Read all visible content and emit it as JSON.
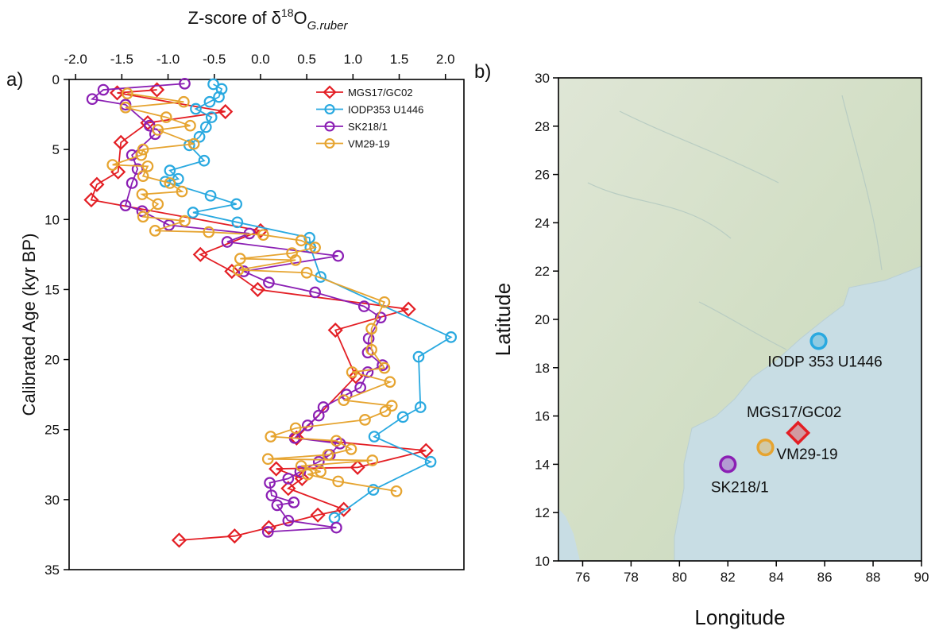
{
  "chart_data": [
    {
      "type": "line",
      "orientation": "vertical",
      "panel_label": "a)",
      "xlabel": [
        "Z-score of δ",
        "18",
        "O",
        "G.ruber"
      ],
      "ylabel": "Calibrated Age (kyr BP)",
      "xlim": [
        -2.07,
        2.2
      ],
      "xticks": [
        {
          "value": -2,
          "label": "-2.0"
        },
        -1.5,
        {
          "value": -1,
          "label": "-1.0"
        },
        -0.5,
        {
          "value": 0,
          "label": "0.0"
        },
        0.5,
        {
          "value": 1,
          "label": "1.0"
        },
        1.5,
        {
          "value": 2,
          "label": "2.0"
        }
      ],
      "ylim": [
        0,
        35
      ],
      "y_inverted": true,
      "yticks": [
        0,
        5,
        10,
        15,
        20,
        25,
        30,
        35
      ],
      "legend": "upper right",
      "series": [
        {
          "name": "MGS17/GC02",
          "color": "#e31e24",
          "marker": "diamond",
          "ages": [
            0.74,
            0.96,
            2.3,
            3.1,
            4.5,
            6.6,
            7.5,
            8.6,
            10.8,
            12.5,
            13.7,
            15.0,
            16.4,
            17.9,
            21.2,
            25.6,
            26.5,
            27.7,
            27.8,
            28.5,
            29.2,
            30.7,
            31.1,
            32.0,
            32.6,
            32.9
          ],
          "values": [
            -1.12,
            -1.55,
            -0.38,
            -1.22,
            -1.51,
            -1.54,
            -1.77,
            -1.83,
            0.0,
            -0.65,
            -0.31,
            -0.03,
            1.6,
            0.81,
            1.03,
            0.39,
            1.79,
            1.05,
            0.17,
            0.45,
            0.3,
            0.9,
            0.62,
            0.09,
            -0.28,
            -0.88
          ]
        },
        {
          "name": "IODP353 U1446",
          "color": "#29a9e0",
          "marker": "circle",
          "ages": [
            0.34,
            0.68,
            1.25,
            1.6,
            2.1,
            2.7,
            3.4,
            4.1,
            4.7,
            5.8,
            6.5,
            7.1,
            7.3,
            8.3,
            8.9,
            9.5,
            10.2,
            11.3,
            12.0,
            14.1,
            18.4,
            19.8,
            23.4,
            24.1,
            25.5,
            27.3,
            29.3,
            31.3
          ],
          "values": [
            -0.51,
            -0.42,
            -0.45,
            -0.55,
            -0.7,
            -0.53,
            -0.59,
            -0.66,
            -0.77,
            -0.61,
            -0.98,
            -0.89,
            -1.03,
            -0.54,
            -0.26,
            -0.73,
            -0.25,
            0.53,
            0.54,
            0.65,
            2.06,
            1.71,
            1.73,
            1.54,
            1.23,
            1.84,
            1.22,
            0.8
          ]
        },
        {
          "name": "SK218/1",
          "color": "#8b1fb4",
          "marker": "circle",
          "ages": [
            0.3,
            0.74,
            1.4,
            1.8,
            3.3,
            3.9,
            5.4,
            6.4,
            7.4,
            9.0,
            9.4,
            10.4,
            11.0,
            11.6,
            12.6,
            13.7,
            14.5,
            15.2,
            16.2,
            17.0,
            18.5,
            19.5,
            20.4,
            20.9,
            22.0,
            22.5,
            23.4,
            24.0,
            24.7,
            25.6,
            26.0,
            26.8,
            27.3,
            28.0,
            28.5,
            28.8,
            29.7,
            30.2,
            30.4,
            31.5,
            32.0,
            32.3
          ],
          "values": [
            -0.82,
            -1.7,
            -1.82,
            -1.46,
            -1.2,
            -1.14,
            -1.39,
            -1.33,
            -1.39,
            -1.46,
            -1.28,
            -0.99,
            -0.12,
            -0.36,
            0.84,
            -0.18,
            0.09,
            0.59,
            1.12,
            1.3,
            1.17,
            1.16,
            1.32,
            1.16,
            1.08,
            0.93,
            0.68,
            0.63,
            0.51,
            0.37,
            0.86,
            0.75,
            0.63,
            0.43,
            0.3,
            0.1,
            0.12,
            0.36,
            0.18,
            0.3,
            0.82,
            0.08
          ]
        },
        {
          "name": "VM29-19",
          "color": "#e6a430",
          "marker": "circle",
          "ages": [
            1.0,
            1.6,
            2.0,
            2.7,
            3.3,
            3.6,
            4.6,
            5.0,
            5.4,
            6.1,
            6.2,
            6.9,
            7.4,
            8.0,
            8.2,
            8.9,
            9.8,
            10.1,
            10.8,
            10.9,
            11.1,
            11.5,
            12.0,
            12.4,
            12.8,
            12.9,
            13.6,
            13.8,
            15.9,
            17.8,
            19.3,
            20.6,
            20.9,
            21.6,
            22.9,
            23.3,
            23.7,
            24.3,
            24.9,
            25.5,
            25.8,
            26.4,
            26.8,
            27.1,
            27.2,
            27.6,
            28.0,
            28.2,
            28.7,
            29.4
          ],
          "values": [
            -1.44,
            -0.83,
            -1.46,
            -1.02,
            -0.76,
            -1.11,
            -0.72,
            -1.27,
            -1.29,
            -1.6,
            -1.22,
            -1.27,
            -0.98,
            -0.85,
            -1.28,
            -1.11,
            -1.27,
            -0.82,
            -1.14,
            -0.56,
            0.03,
            0.44,
            0.59,
            0.34,
            -0.22,
            0.38,
            -0.24,
            0.5,
            1.34,
            1.2,
            1.2,
            1.34,
            0.99,
            1.4,
            0.9,
            1.42,
            1.35,
            1.13,
            0.38,
            0.11,
            0.82,
            0.98,
            0.73,
            0.08,
            1.21,
            0.44,
            0.65,
            0.51,
            0.84,
            1.47
          ]
        }
      ]
    },
    {
      "type": "scatter",
      "panel_label": "b)",
      "xlabel": "Longitude",
      "ylabel": "Latitude",
      "xlim": [
        75,
        90
      ],
      "xticks": [
        76,
        78,
        80,
        82,
        84,
        86,
        88,
        90
      ],
      "ylim": [
        10,
        30
      ],
      "yticks": [
        10,
        12,
        14,
        16,
        18,
        20,
        22,
        24,
        26,
        28,
        30
      ],
      "series": [
        {
          "name": "IODP 353 U1446",
          "color": "#29a9e0",
          "marker": "circle",
          "x": [
            85.75
          ],
          "values": [
            19.1
          ]
        },
        {
          "name": "MGS17/GC02",
          "color": "#e31e24",
          "marker": "diamond",
          "x": [
            84.9
          ],
          "values": [
            15.3
          ]
        },
        {
          "name": "VM29-19",
          "color": "#e6a430",
          "marker": "circle",
          "x": [
            83.55
          ],
          "values": [
            14.7
          ]
        },
        {
          "name": "SK218/1",
          "color": "#8b1fb4",
          "marker": "circle",
          "x": [
            82.0
          ],
          "values": [
            14.0
          ]
        }
      ]
    }
  ]
}
